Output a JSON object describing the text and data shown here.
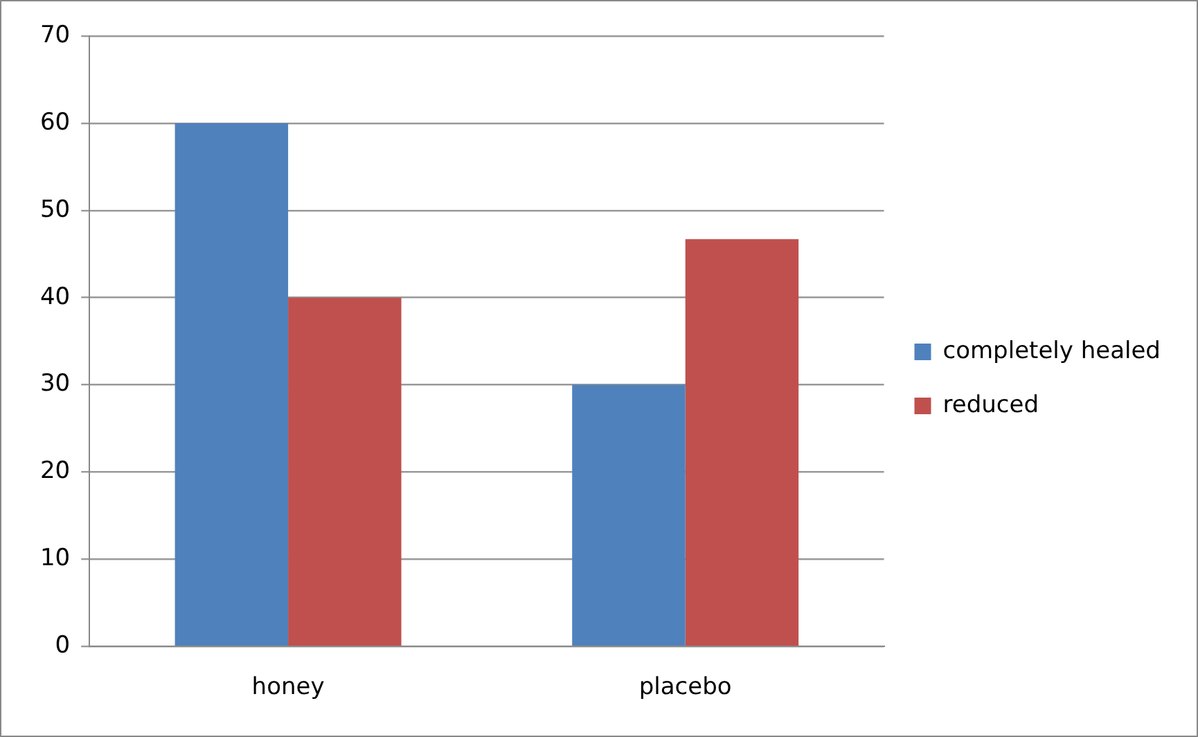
{
  "chart_data": {
    "type": "bar",
    "categories": [
      "honey",
      "placebo"
    ],
    "series": [
      {
        "name": "completely healed",
        "color": "#4f81bd",
        "values": [
          60,
          30
        ]
      },
      {
        "name": "reduced",
        "color": "#c0504d",
        "values": [
          40,
          46.7
        ]
      }
    ],
    "ylim": [
      0,
      70
    ],
    "yticks": [
      0,
      10,
      20,
      30,
      40,
      50,
      60,
      70
    ],
    "grid": "y",
    "legend": "right"
  }
}
